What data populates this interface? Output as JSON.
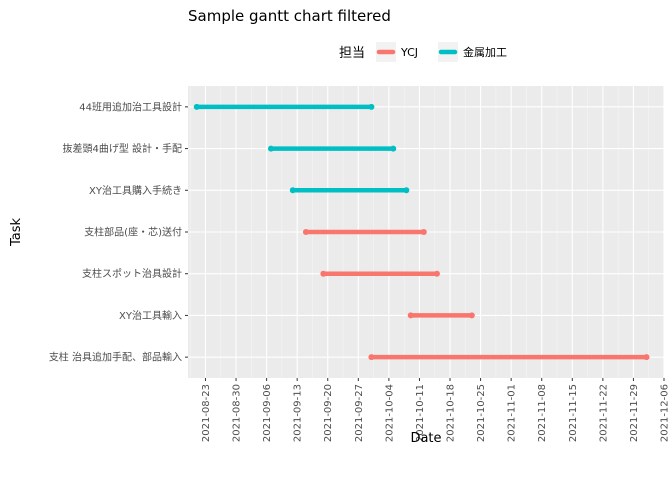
{
  "chart_data": {
    "type": "gantt",
    "title": "Sample gantt chart filtered",
    "xlabel": "Date",
    "ylabel": "Task",
    "legend": {
      "title": "担当",
      "position": "top",
      "items": [
        {
          "name": "YCJ",
          "color": "#F8766D"
        },
        {
          "name": "金属加工",
          "color": "#00BFC4"
        }
      ]
    },
    "x_range": [
      "2021-08-19",
      "2021-12-06"
    ],
    "x_ticks": [
      "2021-08-23",
      "2021-08-30",
      "2021-09-06",
      "2021-09-13",
      "2021-09-20",
      "2021-09-27",
      "2021-10-04",
      "2021-10-11",
      "2021-10-18",
      "2021-10-25",
      "2021-11-01",
      "2021-11-08",
      "2021-11-15",
      "2021-11-22",
      "2021-11-29",
      "2021-12-06"
    ],
    "grid": true,
    "tasks": [
      {
        "task": "44班用追加治工具設計",
        "group": "金属加工",
        "start": "2021-08-21",
        "end": "2021-09-30"
      },
      {
        "task": "抜差頭4曲げ型 設計・手配",
        "group": "金属加工",
        "start": "2021-09-07",
        "end": "2021-10-05"
      },
      {
        "task": "XY治工具購入手続き",
        "group": "金属加工",
        "start": "2021-09-12",
        "end": "2021-10-08"
      },
      {
        "task": "支柱部品(座・芯)送付",
        "group": "YCJ",
        "start": "2021-09-15",
        "end": "2021-10-12"
      },
      {
        "task": "支柱スポット治具設計",
        "group": "YCJ",
        "start": "2021-09-19",
        "end": "2021-10-15"
      },
      {
        "task": "XY治工具輸入",
        "group": "YCJ",
        "start": "2021-10-09",
        "end": "2021-10-23"
      },
      {
        "task": "支柱 治具追加手配、部品輸入",
        "group": "YCJ",
        "start": "2021-09-30",
        "end": "2021-12-02"
      }
    ]
  }
}
